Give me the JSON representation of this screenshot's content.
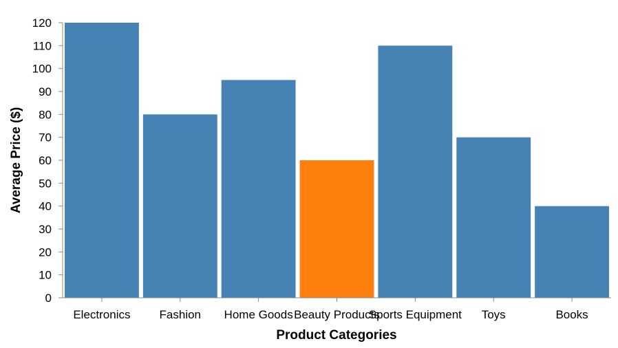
{
  "chart_data": {
    "type": "bar",
    "categories": [
      "Electronics",
      "Fashion",
      "Home Goods",
      "Beauty Products",
      "Sports Equipment",
      "Toys",
      "Books"
    ],
    "values": [
      120,
      80,
      95,
      60,
      110,
      70,
      40
    ],
    "bar_colors": [
      "#4682b4",
      "#4682b4",
      "#4682b4",
      "#ff7f0e",
      "#4682b4",
      "#4682b4",
      "#4682b4"
    ],
    "xlabel": "Product Categories",
    "ylabel": "Average Price ($)",
    "ylim": [
      0,
      120
    ],
    "yticks": [
      0,
      10,
      20,
      30,
      40,
      50,
      60,
      70,
      80,
      90,
      100,
      110,
      120
    ],
    "grid": false,
    "legend": "none"
  }
}
